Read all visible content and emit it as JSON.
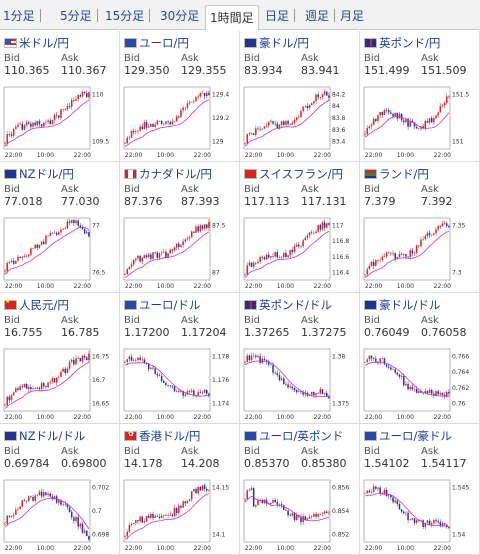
{
  "tabs": [
    {
      "label": "1分足",
      "active": false
    },
    {
      "label": "5分足",
      "active": false
    },
    {
      "label": "15分足",
      "active": false
    },
    {
      "label": "30分足",
      "active": false
    },
    {
      "label": "1時間足",
      "active": true
    },
    {
      "label": "日足",
      "active": false
    },
    {
      "label": "週足",
      "active": false
    },
    {
      "label": "月足",
      "active": false
    }
  ],
  "colors": {
    "up": "#e52222",
    "down": "#2233aa",
    "ma": "#cc33cc",
    "link": "#1a3fa0"
  },
  "labels": {
    "bid": "Bid",
    "ask": "Ask"
  },
  "time_labels": [
    "22:00",
    "10:00",
    "22:00"
  ],
  "pairs": [
    {
      "name": "米ドル/円",
      "flag": "us",
      "bid": "110.365",
      "ask": "110.367",
      "yticks": [
        "110",
        "109.5"
      ],
      "trend": "up"
    },
    {
      "name": "ユーロ/円",
      "flag": "eu",
      "bid": "129.350",
      "ask": "129.355",
      "yticks": [
        "129.4",
        "129.2",
        "129"
      ],
      "trend": "up"
    },
    {
      "name": "豪ドル/円",
      "flag": "au",
      "bid": "83.934",
      "ask": "83.941",
      "yticks": [
        "84.2",
        "84",
        "83.8",
        "83.6",
        "83.4"
      ],
      "trend": "up"
    },
    {
      "name": "英ポンド/円",
      "flag": "gb",
      "bid": "151.499",
      "ask": "151.509",
      "yticks": [
        "151.5",
        "151"
      ],
      "trend": "upflat"
    },
    {
      "name": "NZドル/円",
      "flag": "nz",
      "bid": "77.018",
      "ask": "77.030",
      "yticks": [
        "77",
        "76.5"
      ],
      "trend": "uptop"
    },
    {
      "name": "カナダドル/円",
      "flag": "ca",
      "bid": "87.376",
      "ask": "87.393",
      "yticks": [
        "87.5",
        "87"
      ],
      "trend": "up"
    },
    {
      "name": "スイスフラン/円",
      "flag": "ch",
      "bid": "117.113",
      "ask": "117.131",
      "yticks": [
        "117",
        "116.8",
        "116.6",
        "116.4"
      ],
      "trend": "up"
    },
    {
      "name": "ランド/円",
      "flag": "za",
      "bid": "7.379",
      "ask": "7.392",
      "yticks": [
        "7.35",
        "7.3"
      ],
      "trend": "up"
    },
    {
      "name": "人民元/円",
      "flag": "cn",
      "bid": "16.755",
      "ask": "16.785",
      "yticks": [
        "16.75",
        "16.7",
        "16.65"
      ],
      "trend": "up"
    },
    {
      "name": "ユーロ/ドル",
      "flag": "eu",
      "bid": "1.17200",
      "ask": "1.17204",
      "yticks": [
        "1.178",
        "1.176",
        "1.174"
      ],
      "trend": "down"
    },
    {
      "name": "英ポンド/ドル",
      "flag": "gb",
      "bid": "1.37265",
      "ask": "1.37275",
      "yticks": [
        "1.38",
        "1.375"
      ],
      "trend": "down"
    },
    {
      "name": "豪ドル/ドル",
      "flag": "au",
      "bid": "0.76049",
      "ask": "0.76058",
      "yticks": [
        "0.766",
        "0.764",
        "0.762",
        "0.76"
      ],
      "trend": "down"
    },
    {
      "name": "NZドル/ドル",
      "flag": "nz",
      "bid": "0.69784",
      "ask": "0.69800",
      "yticks": [
        "0.702",
        "0.7",
        "0.698"
      ],
      "trend": "humpdown"
    },
    {
      "name": "香港ドル/円",
      "flag": "hk",
      "bid": "14.178",
      "ask": "14.208",
      "yticks": [
        "14.15",
        "14.1"
      ],
      "trend": "up"
    },
    {
      "name": "ユーロ/英ポンド",
      "flag": "eu",
      "bid": "0.85370",
      "ask": "0.85380",
      "yticks": [
        "0.856",
        "0.854",
        "0.852"
      ],
      "trend": "flat"
    },
    {
      "name": "ユーロ/豪ドル",
      "flag": "eu",
      "bid": "1.54102",
      "ask": "1.54117",
      "yticks": [
        "1.545",
        "1.54"
      ],
      "trend": "down"
    }
  ]
}
